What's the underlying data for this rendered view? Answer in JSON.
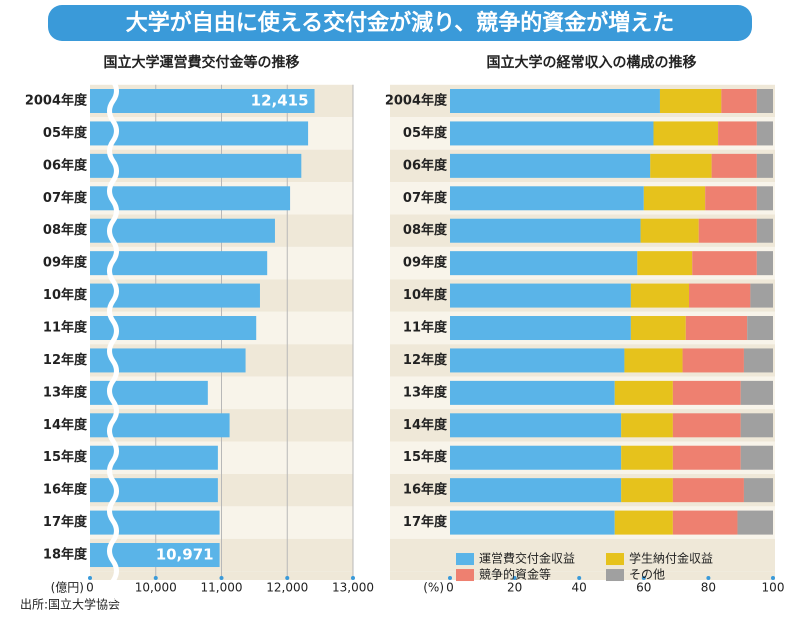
{
  "title": "大学が自由に使える交付金が減り、競争的資金が増えた",
  "source": "出所:国立大学協会",
  "chart_data": [
    {
      "type": "bar",
      "orientation": "horizontal",
      "title": "国立大学運営費交付金等の推移",
      "categories": [
        "2004年度",
        "05年度",
        "06年度",
        "07年度",
        "08年度",
        "09年度",
        "10年度",
        "11年度",
        "12年度",
        "13年度",
        "14年度",
        "15年度",
        "16年度",
        "17年度",
        "18年度"
      ],
      "values": [
        12415,
        12317,
        12214,
        12043,
        11813,
        11695,
        11585,
        11528,
        11366,
        10792,
        11123,
        10945,
        10945,
        10971,
        10971
      ],
      "value_labels": [
        "12,415",
        null,
        null,
        null,
        null,
        null,
        null,
        null,
        null,
        null,
        null,
        null,
        null,
        null,
        "10,971"
      ],
      "color": "#5ab4e8",
      "xlim": [
        0,
        13000
      ],
      "axis_break": [
        0,
        9000
      ],
      "xticks": [
        0,
        {
          "value": 10000,
          "label": "10,000"
        },
        {
          "value": 11000,
          "label": "11,000"
        },
        {
          "value": 12000,
          "label": "12,000"
        },
        {
          "value": 13000,
          "label": "13,000"
        }
      ],
      "x_unit_label": "(億円)",
      "grid": true
    },
    {
      "type": "stacked_bar",
      "orientation": "horizontal",
      "title": "国立大学の経常収入の構成の推移",
      "categories": [
        "2004年度",
        "05年度",
        "06年度",
        "07年度",
        "08年度",
        "09年度",
        "10年度",
        "11年度",
        "12年度",
        "13年度",
        "14年度",
        "15年度",
        "16年度",
        "17年度"
      ],
      "series": [
        {
          "name": "運営費交付金収益",
          "color": "#5ab4e8",
          "values": [
            65,
            63,
            62,
            60,
            59,
            58,
            56,
            56,
            54,
            51,
            53,
            53,
            53,
            51
          ]
        },
        {
          "name": "学生納付金収益",
          "color": "#e6c21c",
          "values": [
            19,
            20,
            19,
            19,
            18,
            17,
            18,
            17,
            18,
            18,
            16,
            16,
            16,
            18
          ]
        },
        {
          "name": "競争的資金等",
          "color": "#ee8070",
          "values": [
            11,
            12,
            14,
            16,
            18,
            20,
            19,
            19,
            19,
            21,
            21,
            21,
            22,
            20
          ]
        },
        {
          "name": "その他",
          "color": "#a0a0a0",
          "values": [
            5,
            5,
            5,
            5,
            5,
            5,
            7,
            8,
            9,
            10,
            10,
            10,
            9,
            11
          ]
        }
      ],
      "xlim": [
        0,
        100
      ],
      "xticks": [
        0,
        20,
        40,
        60,
        80,
        100
      ],
      "x_unit_label": "(%)",
      "legend": "bottom",
      "grid": false
    }
  ]
}
